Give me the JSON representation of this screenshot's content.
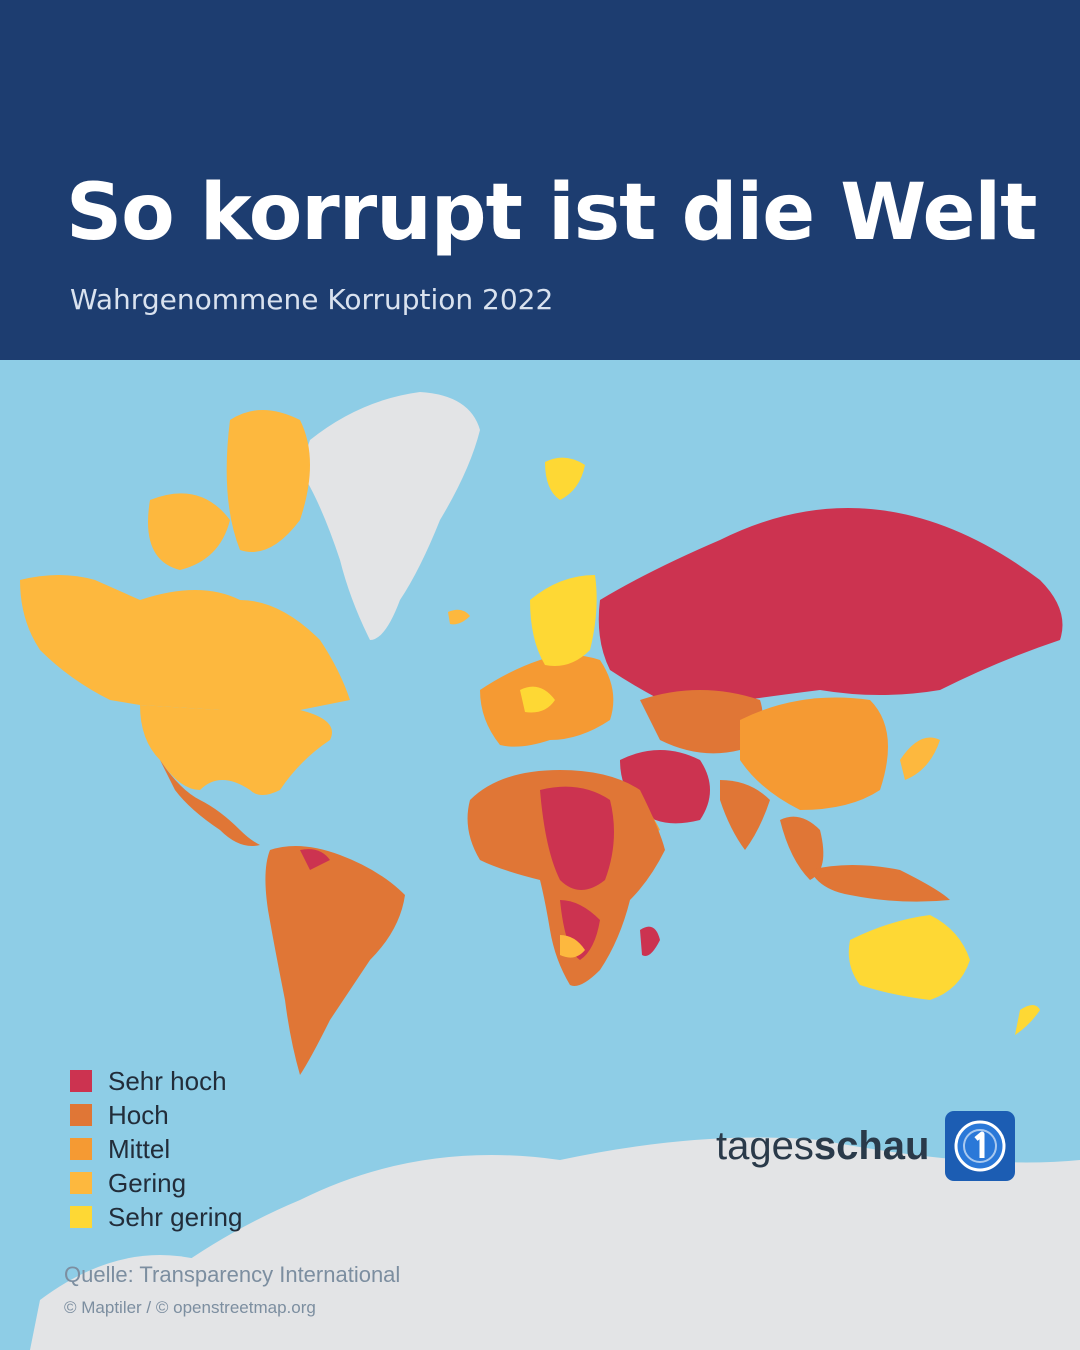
{
  "header": {
    "title": "So korrupt ist die Welt",
    "subtitle": "Wahrgenommene Korruption 2022"
  },
  "legend": [
    {
      "label": "Sehr hoch",
      "color": "#cc3350"
    },
    {
      "label": "Hoch",
      "color": "#e07636"
    },
    {
      "label": "Mittel",
      "color": "#f59a33"
    },
    {
      "label": "Gering",
      "color": "#fdb83e"
    },
    {
      "label": "Sehr gering",
      "color": "#fed834"
    }
  ],
  "footer": {
    "source": "Quelle: Transparency International",
    "credit": "© Maptiler / © openstreetmap.org"
  },
  "brand": {
    "name_part1": "tages",
    "name_part2": "schau",
    "logo_icon": "ard-1-logo-icon"
  },
  "colors": {
    "header_bg": "#1d3d70",
    "ocean": "#8ecde6",
    "no_data": "#e3e4e6"
  }
}
